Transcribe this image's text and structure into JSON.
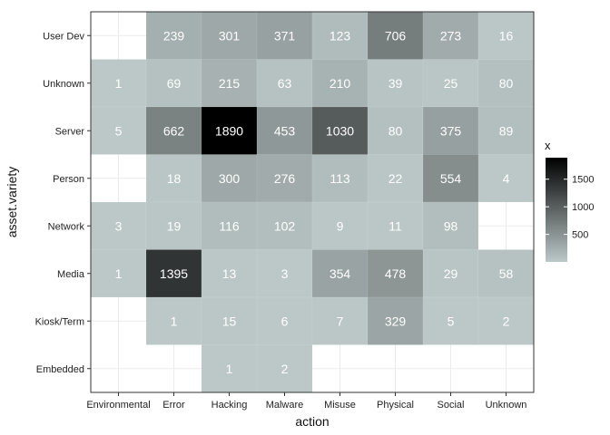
{
  "chart_data": {
    "type": "heatmap",
    "xlabel": "action",
    "ylabel": "asset.variety",
    "x_categories": [
      "Environmental",
      "Error",
      "Hacking",
      "Malware",
      "Misuse",
      "Physical",
      "Social",
      "Unknown"
    ],
    "y_categories": [
      "User Dev",
      "Unknown",
      "Server",
      "Person",
      "Network",
      "Media",
      "Kiosk/Term",
      "Embedded"
    ],
    "values": [
      [
        null,
        239,
        301,
        371,
        123,
        706,
        273,
        16
      ],
      [
        1,
        69,
        215,
        63,
        210,
        39,
        25,
        80
      ],
      [
        5,
        662,
        1890,
        453,
        1030,
        80,
        375,
        89
      ],
      [
        null,
        18,
        300,
        276,
        113,
        22,
        554,
        4
      ],
      [
        3,
        19,
        116,
        102,
        9,
        11,
        98,
        null
      ],
      [
        1,
        1395,
        13,
        3,
        354,
        478,
        29,
        58
      ],
      [
        null,
        1,
        15,
        6,
        7,
        329,
        5,
        2
      ],
      [
        null,
        null,
        1,
        2,
        null,
        null,
        null,
        null
      ]
    ],
    "legend": {
      "title": "x",
      "ticks": [
        500,
        1000,
        1500
      ],
      "range": [
        1,
        1890
      ],
      "low_color": "#bcc8c8",
      "high_color": "#000000",
      "placement": "right"
    },
    "grid": true,
    "panel_border": true
  }
}
